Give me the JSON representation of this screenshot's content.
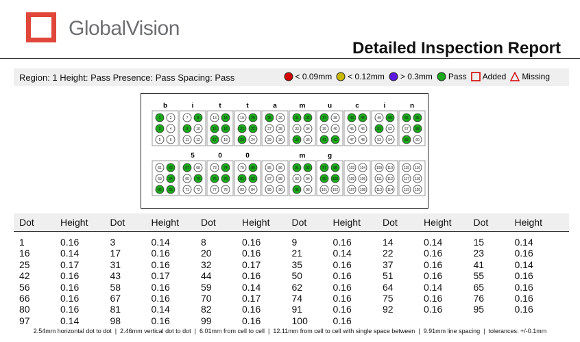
{
  "header": {
    "logo_text": "GlobalVision",
    "title": "Detailed Inspection Report"
  },
  "status": "Region: 1 Height: Pass Presence: Pass Spacing: Pass",
  "legend": [
    {
      "shape": "circle",
      "color": "#d40000",
      "label": "< 0.09mm"
    },
    {
      "shape": "circle",
      "color": "#c9b800",
      "label": "< 0.12mm"
    },
    {
      "shape": "circle",
      "color": "#5a18e0",
      "label": "> 0.3mm"
    },
    {
      "shape": "circle",
      "color": "#1ca81c",
      "label": "Pass"
    },
    {
      "shape": "square",
      "color": "#d40000",
      "label": "Added"
    },
    {
      "shape": "triangle",
      "color": "#d40000",
      "label": "Missing"
    }
  ],
  "braille": {
    "rows": [
      {
        "labels": [
          "b",
          "i",
          "t",
          "t",
          "a",
          "m",
          "u",
          "c",
          "i",
          "n"
        ],
        "cells": [
          [
            1,
            2,
            3,
            4,
            5,
            6
          ],
          [
            7,
            8,
            9,
            10,
            11,
            12
          ],
          [
            13,
            14,
            15,
            16,
            17,
            18
          ],
          [
            19,
            20,
            21,
            22,
            23,
            24
          ],
          [
            25,
            26,
            27,
            28,
            29,
            30
          ],
          [
            31,
            32,
            33,
            34,
            35,
            36
          ],
          [
            37,
            38,
            39,
            40,
            41,
            42
          ],
          [
            43,
            44,
            45,
            46,
            47,
            48
          ],
          [
            49,
            50,
            51,
            52,
            53,
            54
          ],
          [
            55,
            56,
            57,
            58,
            59,
            60
          ]
        ]
      },
      {
        "labels": [
          null,
          "5",
          "0",
          "0",
          null,
          "m",
          "g",
          null,
          null,
          null
        ],
        "cells": [
          [
            61,
            62,
            63,
            64,
            65,
            66
          ],
          [
            67,
            68,
            69,
            70,
            71,
            72
          ],
          [
            73,
            74,
            75,
            76,
            77,
            78
          ],
          [
            79,
            80,
            81,
            82,
            83,
            84
          ],
          [
            85,
            86,
            87,
            88,
            89,
            90
          ],
          [
            91,
            92,
            93,
            94,
            95,
            96
          ],
          [
            97,
            98,
            99,
            100,
            101,
            102
          ],
          [
            103,
            104,
            105,
            106,
            107,
            108
          ],
          [
            109,
            110,
            111,
            112,
            113,
            114
          ],
          [
            115,
            116,
            117,
            118,
            119,
            120
          ]
        ]
      }
    ]
  },
  "table": {
    "header": [
      "Dot",
      "Height",
      "Dot",
      "Height",
      "Dot",
      "Height",
      "Dot",
      "Height",
      "Dot",
      "Height",
      "Dot",
      "Height"
    ],
    "rows": [
      [
        1,
        0.16,
        3,
        0.14,
        8,
        0.16,
        9,
        0.16,
        14,
        0.14,
        15,
        0.14
      ],
      [
        16,
        0.14,
        17,
        0.16,
        20,
        0.16,
        21,
        0.14,
        22,
        0.16,
        23,
        0.16
      ],
      [
        25,
        0.17,
        31,
        0.16,
        32,
        0.17,
        35,
        0.16,
        37,
        0.16,
        41,
        0.14
      ],
      [
        42,
        0.16,
        43,
        0.17,
        44,
        0.16,
        50,
        0.16,
        51,
        0.16,
        55,
        0.16
      ],
      [
        56,
        0.16,
        58,
        0.16,
        59,
        0.14,
        62,
        0.16,
        64,
        0.14,
        65,
        0.16
      ],
      [
        66,
        0.16,
        67,
        0.16,
        70,
        0.17,
        74,
        0.16,
        75,
        0.16,
        76,
        0.16
      ],
      [
        80,
        0.16,
        81,
        0.14,
        82,
        0.16,
        91,
        0.16,
        92,
        0.16,
        95,
        0.16
      ],
      [
        97,
        0.14,
        98,
        0.16,
        99,
        0.16,
        100,
        0.16
      ]
    ]
  },
  "footer": "2.54mm horizontal dot to dot  |  2.46mm vertical dot to dot  |  6.01mm from cell to cell  |  12.11mm from cell to cell with single space between  |  9.91mm line spacing  |  tolerances: +/-0.1mm"
}
